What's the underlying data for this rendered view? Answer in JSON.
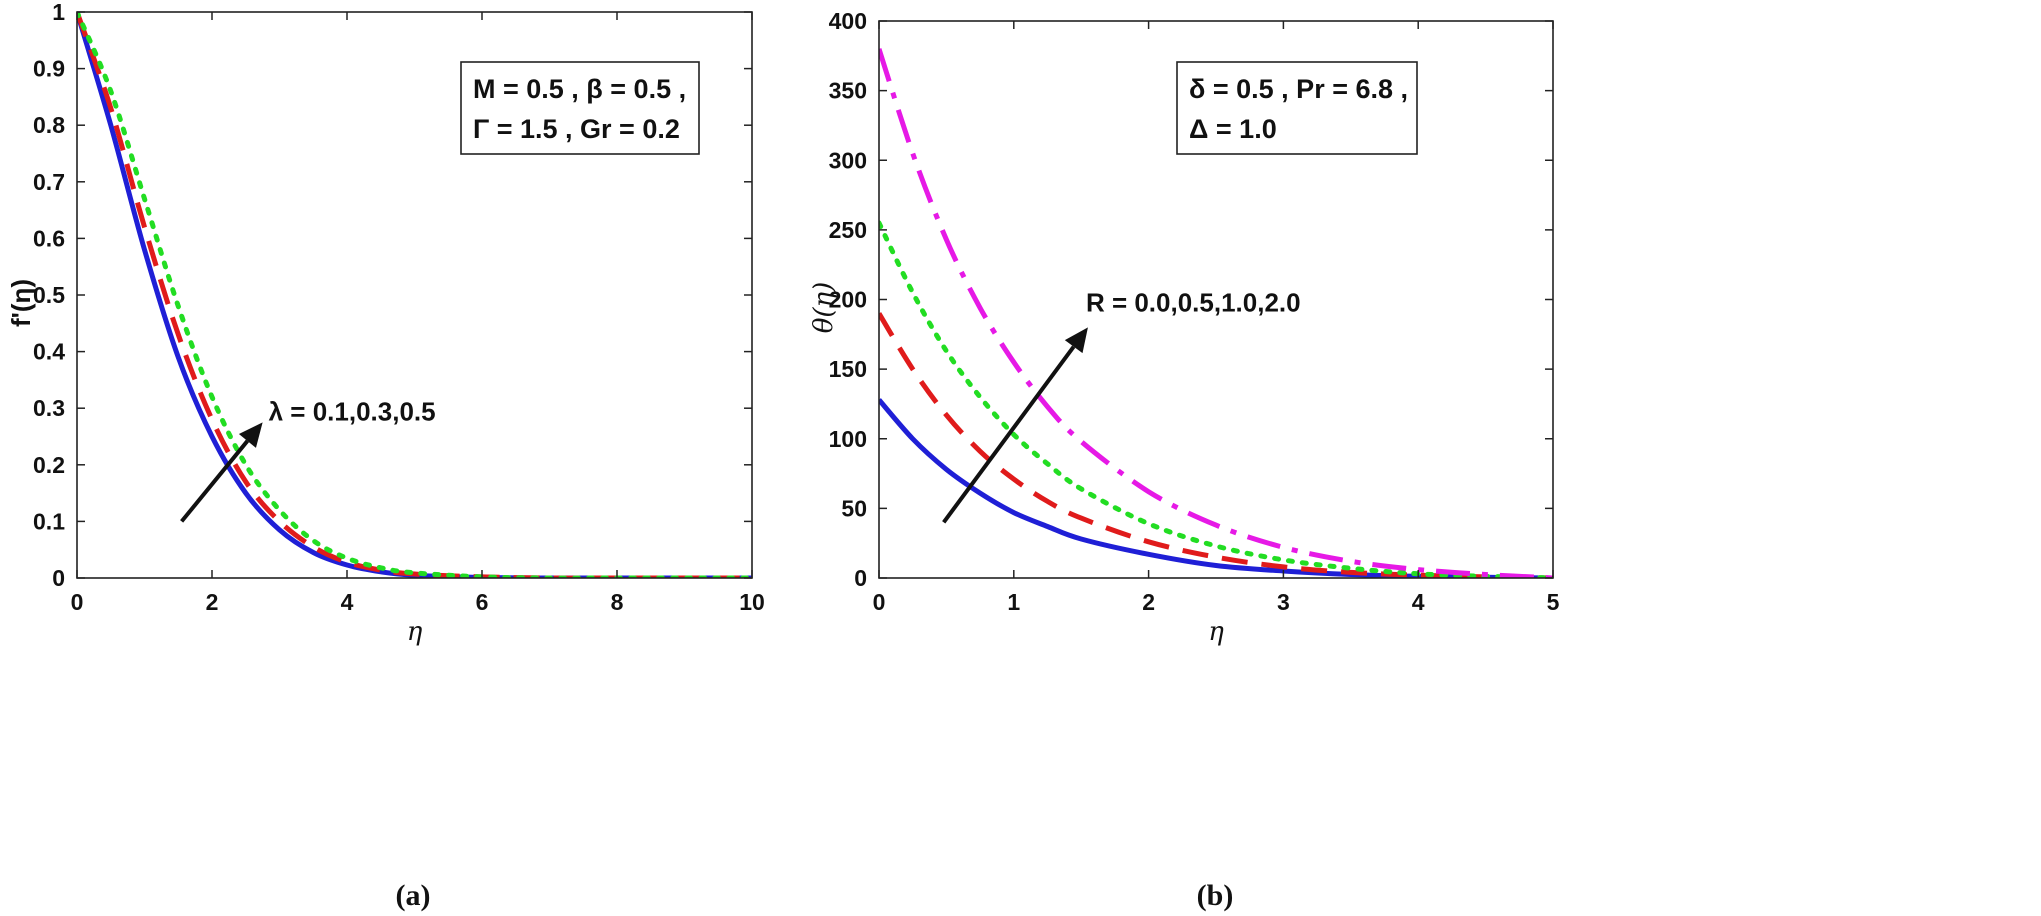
{
  "chart_data": [
    {
      "id": "a",
      "type": "line",
      "caption": "(a)",
      "xlabel": "η",
      "ylabel": "f'(η)",
      "xlim": [
        0,
        10
      ],
      "ylim": [
        0,
        1
      ],
      "xticks": [
        0,
        2,
        4,
        6,
        8,
        10
      ],
      "xtick_labels": [
        "0",
        "2",
        "4",
        "6",
        "8",
        "10"
      ],
      "yticks": [
        0,
        0.1,
        0.2,
        0.3,
        0.4,
        0.5,
        0.6,
        0.7,
        0.8,
        0.9,
        1
      ],
      "ytick_labels": [
        "0",
        "0.1",
        "0.2",
        "0.3",
        "0.4",
        "0.5",
        "0.6",
        "0.7",
        "0.8",
        "0.9",
        "1"
      ],
      "legend_box": {
        "line1": "M = 0.5 , β = 0.5 ,",
        "line2": "Γ = 1.5 , Gr = 0.2"
      },
      "annotation": {
        "text": "λ = 0.1,0.3,0.5",
        "arrow_from": [
          1.55,
          0.1
        ],
        "arrow_to": [
          2.75,
          0.275
        ]
      },
      "series": [
        {
          "name": "λ = 0.1",
          "color": "#1f1fd6",
          "style": "solid",
          "x": [
            0,
            0.5,
            1,
            1.5,
            2,
            2.5,
            3,
            3.5,
            4,
            4.5,
            5,
            6,
            7,
            8,
            10
          ],
          "y": [
            1,
            0.8,
            0.58,
            0.39,
            0.25,
            0.15,
            0.085,
            0.045,
            0.023,
            0.011,
            0.005,
            0.001,
            0,
            0,
            0
          ]
        },
        {
          "name": "λ = 0.3",
          "color": "#e01b1b",
          "style": "dashed",
          "x": [
            0,
            0.5,
            1,
            1.5,
            2,
            2.5,
            3,
            3.5,
            4,
            4.5,
            5,
            6,
            7,
            8,
            10
          ],
          "y": [
            1,
            0.83,
            0.62,
            0.43,
            0.28,
            0.17,
            0.1,
            0.055,
            0.028,
            0.014,
            0.007,
            0.002,
            0,
            0,
            0
          ]
        },
        {
          "name": "λ = 0.5",
          "color": "#22dd22",
          "style": "dotted",
          "x": [
            0,
            0.5,
            1,
            1.5,
            2,
            2.5,
            3,
            3.5,
            4,
            4.5,
            5,
            6,
            7,
            8,
            10
          ],
          "y": [
            1,
            0.86,
            0.67,
            0.48,
            0.32,
            0.2,
            0.12,
            0.066,
            0.035,
            0.018,
            0.009,
            0.002,
            0,
            0,
            0
          ]
        }
      ]
    },
    {
      "id": "b",
      "type": "line",
      "caption": "(b)",
      "xlabel": "η",
      "ylabel": "θ(η)",
      "xlim": [
        0,
        5
      ],
      "ylim": [
        0,
        400
      ],
      "xticks": [
        0,
        1,
        2,
        3,
        4,
        5
      ],
      "xtick_labels": [
        "0",
        "1",
        "2",
        "3",
        "4",
        "5"
      ],
      "yticks": [
        0,
        50,
        100,
        150,
        200,
        250,
        300,
        350,
        400
      ],
      "ytick_labels": [
        "0",
        "50",
        "100",
        "150",
        "200",
        "250",
        "300",
        "350",
        "400"
      ],
      "legend_box": {
        "line1": "δ = 0.5 , Pr = 6.8 ,",
        "line2": "Δ = 1.0"
      },
      "annotation": {
        "text": "R = 0.0,0.5,1.0,2.0",
        "arrow_from": [
          0.48,
          40
        ],
        "arrow_to": [
          1.55,
          180
        ]
      },
      "series": [
        {
          "name": "R = 0.0",
          "color": "#1f1fd6",
          "style": "solid",
          "x": [
            0,
            0.25,
            0.5,
            0.75,
            1,
            1.25,
            1.5,
            2,
            2.5,
            3,
            3.5,
            4,
            4.5,
            5
          ],
          "y": [
            128,
            100,
            78,
            61,
            47,
            37,
            28,
            17,
            9,
            5,
            2.5,
            1.2,
            0.5,
            0
          ]
        },
        {
          "name": "R = 0.5",
          "color": "#e01b1b",
          "style": "dashed",
          "x": [
            0,
            0.25,
            0.5,
            0.75,
            1,
            1.25,
            1.5,
            2,
            2.5,
            3,
            3.5,
            4,
            4.5,
            5
          ],
          "y": [
            190,
            150,
            117,
            91,
            71,
            55,
            43,
            26,
            15,
            8,
            4,
            2,
            0.8,
            0
          ]
        },
        {
          "name": "R = 1.0",
          "color": "#22dd22",
          "style": "dotted",
          "x": [
            0,
            0.25,
            0.5,
            0.75,
            1,
            1.25,
            1.5,
            2,
            2.5,
            3,
            3.5,
            4,
            4.5,
            5
          ],
          "y": [
            255,
            205,
            163,
            130,
            103,
            82,
            64,
            39,
            23,
            13,
            7,
            3,
            1.2,
            0
          ]
        },
        {
          "name": "R = 2.0",
          "color": "#e619e6",
          "style": "dashdot",
          "x": [
            0,
            0.25,
            0.5,
            0.75,
            1,
            1.25,
            1.5,
            2,
            2.5,
            3,
            3.5,
            4,
            4.5,
            5
          ],
          "y": [
            380,
            305,
            243,
            194,
            155,
            123,
            98,
            62,
            38,
            22,
            12,
            6,
            2.5,
            0
          ]
        }
      ]
    }
  ]
}
